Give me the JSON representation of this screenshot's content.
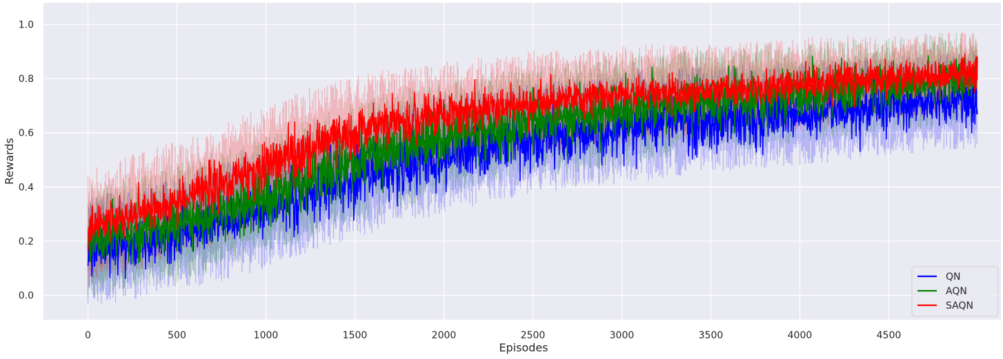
{
  "chart_data": {
    "type": "line",
    "title": "",
    "xlabel": "Episodes",
    "ylabel": "Rewards",
    "xlim": [
      -250,
      5130
    ],
    "ylim": [
      -0.09,
      1.08
    ],
    "xticks": [
      0,
      500,
      1000,
      1500,
      2000,
      2500,
      3000,
      3500,
      4000,
      4500
    ],
    "yticks": [
      0.0,
      0.2,
      0.4,
      0.6,
      0.8,
      1.0
    ],
    "xtick_labels": [
      "0",
      "500",
      "1000",
      "1500",
      "2000",
      "2500",
      "3000",
      "3500",
      "4000",
      "4500"
    ],
    "ytick_labels": [
      "0.0",
      "0.2",
      "0.4",
      "0.6",
      "0.8",
      "1.0"
    ],
    "grid": true,
    "background": "#eaeaf2",
    "legend": {
      "placement": "lower-right"
    },
    "episodes": 5000,
    "series": [
      {
        "name": "QN",
        "color": "#0000ff",
        "x": [
          0,
          250,
          500,
          750,
          1000,
          1250,
          1500,
          1750,
          2000,
          2250,
          2500,
          2750,
          3000,
          3250,
          3500,
          3750,
          4000,
          4250,
          4500,
          4750,
          5000
        ],
        "mean": [
          0.16,
          0.19,
          0.23,
          0.27,
          0.32,
          0.38,
          0.43,
          0.48,
          0.52,
          0.55,
          0.58,
          0.6,
          0.62,
          0.64,
          0.65,
          0.66,
          0.67,
          0.69,
          0.7,
          0.71,
          0.72
        ],
        "spread": [
          0.06,
          0.06,
          0.06,
          0.06,
          0.06,
          0.07,
          0.07,
          0.07,
          0.07,
          0.07,
          0.07,
          0.07,
          0.07,
          0.07,
          0.07,
          0.07,
          0.06,
          0.06,
          0.06,
          0.06,
          0.06
        ],
        "band": [
          0.16,
          0.16,
          0.16,
          0.17,
          0.17,
          0.17,
          0.17,
          0.17,
          0.17,
          0.16,
          0.16,
          0.16,
          0.16,
          0.16,
          0.15,
          0.15,
          0.15,
          0.15,
          0.14,
          0.14,
          0.14
        ]
      },
      {
        "name": "AQN",
        "color": "#008000",
        "x": [
          0,
          250,
          500,
          750,
          1000,
          1250,
          1500,
          1750,
          2000,
          2250,
          2500,
          2750,
          3000,
          3250,
          3500,
          3750,
          4000,
          4250,
          4500,
          4750,
          5000
        ],
        "mean": [
          0.2,
          0.23,
          0.27,
          0.31,
          0.37,
          0.43,
          0.49,
          0.54,
          0.58,
          0.61,
          0.64,
          0.66,
          0.68,
          0.7,
          0.72,
          0.73,
          0.75,
          0.76,
          0.77,
          0.79,
          0.8
        ],
        "spread": [
          0.06,
          0.06,
          0.06,
          0.06,
          0.07,
          0.07,
          0.07,
          0.07,
          0.07,
          0.07,
          0.07,
          0.06,
          0.06,
          0.06,
          0.06,
          0.06,
          0.06,
          0.06,
          0.06,
          0.05,
          0.05
        ],
        "band": [
          0.16,
          0.16,
          0.17,
          0.17,
          0.17,
          0.17,
          0.17,
          0.17,
          0.16,
          0.16,
          0.16,
          0.16,
          0.16,
          0.15,
          0.15,
          0.15,
          0.14,
          0.14,
          0.14,
          0.14,
          0.13
        ]
      },
      {
        "name": "SAQN",
        "color": "#ff0000",
        "x": [
          0,
          250,
          500,
          750,
          1000,
          1250,
          1500,
          1750,
          2000,
          2250,
          2500,
          2750,
          3000,
          3250,
          3500,
          3750,
          4000,
          4250,
          4500,
          4750,
          5000
        ],
        "mean": [
          0.25,
          0.3,
          0.35,
          0.41,
          0.48,
          0.55,
          0.6,
          0.64,
          0.67,
          0.69,
          0.71,
          0.73,
          0.74,
          0.75,
          0.76,
          0.77,
          0.78,
          0.79,
          0.8,
          0.81,
          0.82
        ],
        "spread": [
          0.05,
          0.05,
          0.05,
          0.06,
          0.06,
          0.06,
          0.06,
          0.05,
          0.05,
          0.05,
          0.04,
          0.04,
          0.04,
          0.04,
          0.04,
          0.04,
          0.04,
          0.04,
          0.04,
          0.04,
          0.04
        ],
        "band": [
          0.17,
          0.17,
          0.17,
          0.17,
          0.17,
          0.17,
          0.16,
          0.16,
          0.15,
          0.15,
          0.15,
          0.14,
          0.14,
          0.14,
          0.13,
          0.13,
          0.13,
          0.13,
          0.12,
          0.12,
          0.12
        ]
      }
    ]
  }
}
